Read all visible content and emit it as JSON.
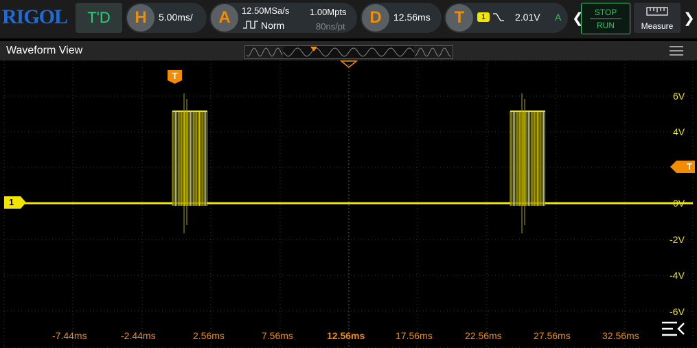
{
  "brand": "RIGOL",
  "toolbar": {
    "td_label": "T'D",
    "horizontal": {
      "icon": "H",
      "scale": "5.00ms/"
    },
    "acquire": {
      "icon": "A",
      "sample_rate": "12.50MSa/s",
      "memory_depth": "1.00Mpts",
      "mode": "Norm",
      "time_per_point": "80ns/pt"
    },
    "delay": {
      "icon": "D",
      "value": "12.56ms"
    },
    "trigger": {
      "icon": "T",
      "source": "1",
      "level": "2.01V",
      "status": "A"
    },
    "run_stop": {
      "line1": "STOP",
      "line2": "RUN"
    },
    "measure_label": "Measure"
  },
  "waveform_view": {
    "title": "Waveform View",
    "trigger_marker": "T",
    "channel_marker": "1",
    "y_labels": [
      "6V",
      "4V",
      "0V",
      "-2V",
      "-4V",
      "-6V"
    ],
    "x_labels": [
      "-7.44ms",
      "-2.44ms",
      "2.56ms",
      "7.56ms",
      "12.56ms",
      "17.56ms",
      "22.56ms",
      "27.56ms",
      "32.56ms"
    ]
  },
  "colors": {
    "ch1": "#f2e600",
    "trigger": "#f28c00",
    "run": "#34c36b",
    "brand": "#1e6bd6"
  }
}
